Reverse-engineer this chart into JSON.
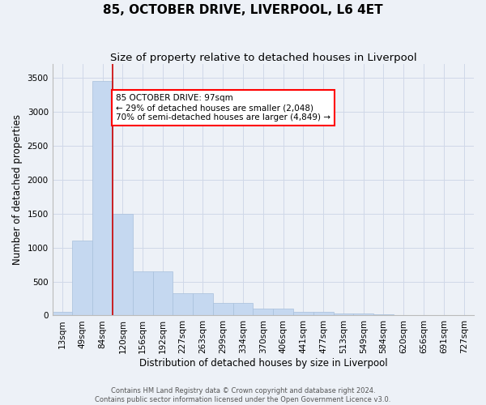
{
  "title": "85, OCTOBER DRIVE, LIVERPOOL, L6 4ET",
  "subtitle": "Size of property relative to detached houses in Liverpool",
  "xlabel": "Distribution of detached houses by size in Liverpool",
  "ylabel": "Number of detached properties",
  "categories": [
    "13sqm",
    "49sqm",
    "84sqm",
    "120sqm",
    "156sqm",
    "192sqm",
    "227sqm",
    "263sqm",
    "299sqm",
    "334sqm",
    "370sqm",
    "406sqm",
    "441sqm",
    "477sqm",
    "513sqm",
    "549sqm",
    "584sqm",
    "620sqm",
    "656sqm",
    "691sqm",
    "727sqm"
  ],
  "values": [
    50,
    1100,
    3450,
    1500,
    650,
    650,
    330,
    330,
    185,
    185,
    105,
    105,
    55,
    55,
    30,
    30,
    15,
    10,
    5,
    5,
    2
  ],
  "bar_color": "#c5d8f0",
  "bar_edge_color": "#a8c0dc",
  "grid_color": "#d0d8e8",
  "background_color": "#edf1f7",
  "red_line_x": 2.5,
  "annotation_line1": "85 OCTOBER DRIVE: 97sqm",
  "annotation_line2": "← 29% of detached houses are smaller (2,048)",
  "annotation_line3": "70% of semi-detached houses are larger (4,849) →",
  "footer1": "Contains HM Land Registry data © Crown copyright and database right 2024.",
  "footer2": "Contains public sector information licensed under the Open Government Licence v3.0.",
  "ylim": [
    0,
    3700
  ],
  "yticks": [
    0,
    500,
    1000,
    1500,
    2000,
    2500,
    3000,
    3500
  ],
  "title_fontsize": 11,
  "subtitle_fontsize": 9.5,
  "axis_label_fontsize": 8.5,
  "tick_fontsize": 7.5,
  "footer_fontsize": 6,
  "annotation_fontsize": 7.5
}
